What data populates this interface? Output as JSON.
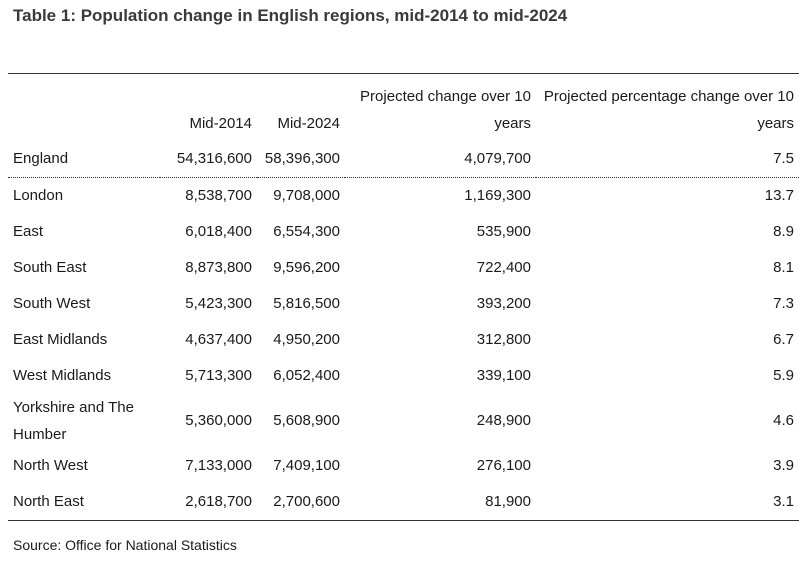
{
  "title": "Table 1: Population change in English regions, mid-2014 to mid-2024",
  "table": {
    "header": [
      "",
      "Mid-2014",
      "Mid-2024",
      "Projected change over 10 years",
      "Projected percentage change over 10 years"
    ],
    "rows": [
      [
        "England",
        "54,316,600",
        "58,396,300",
        "4,079,700",
        "7.5"
      ],
      [
        "London",
        "8,538,700",
        "9,708,000",
        "1,169,300",
        "13.7"
      ],
      [
        "East",
        "6,018,400",
        "6,554,300",
        "535,900",
        "8.9"
      ],
      [
        "South East",
        "8,873,800",
        "9,596,200",
        "722,400",
        "8.1"
      ],
      [
        "South West",
        "5,423,300",
        "5,816,500",
        "393,200",
        "7.3"
      ],
      [
        "East Midlands",
        "4,637,400",
        "4,950,200",
        "312,800",
        "6.7"
      ],
      [
        "West Midlands",
        "5,713,300",
        "6,052,400",
        "339,100",
        "5.9"
      ],
      [
        "Yorkshire and The Humber",
        "5,360,000",
        "5,608,900",
        "248,900",
        "4.6"
      ],
      [
        "North West",
        "7,133,000",
        "7,409,100",
        "276,100",
        "3.9"
      ],
      [
        "North East",
        "2,618,700",
        "2,700,600",
        "81,900",
        "3.1"
      ]
    ]
  },
  "source": "Source: Office for National Statistics"
}
